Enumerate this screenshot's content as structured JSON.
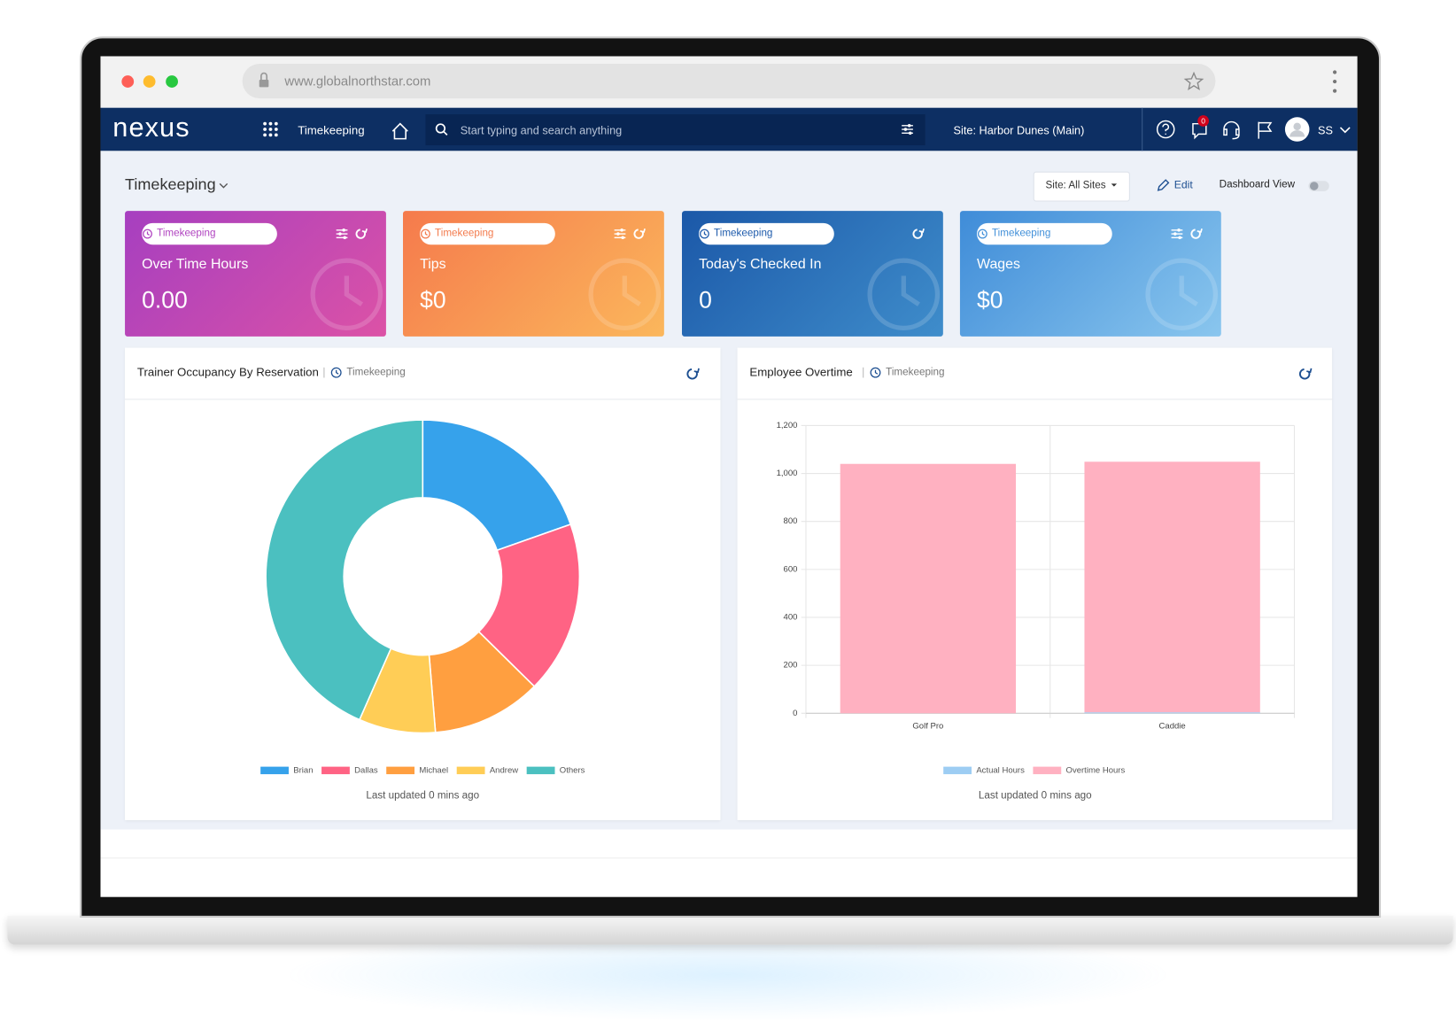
{
  "browser": {
    "url": "www.globalnorthstar.com"
  },
  "nav": {
    "logo": "nexus",
    "module": "Timekeeping",
    "search_placeholder": "Start typing and search anything",
    "site": "Site: Harbor Dunes (Main)",
    "notifications": "0",
    "user_initials": "SS"
  },
  "page": {
    "title": "Timekeeping",
    "site_filter": "Site: All Sites",
    "edit": "Edit",
    "dashboard_view": "Dashboard View"
  },
  "cards": [
    {
      "tag": "Timekeeping",
      "title": "Over Time Hours",
      "value": "0.00"
    },
    {
      "tag": "Timekeeping",
      "title": "Tips",
      "value": "$0"
    },
    {
      "tag": "Timekeeping",
      "title": "Today's Checked In",
      "value": "0"
    },
    {
      "tag": "Timekeeping",
      "title": "Wages",
      "value": "$0"
    }
  ],
  "panels": [
    {
      "tag": "Timekeeping",
      "footer": "Last updated 0 mins ago"
    },
    {
      "tag": "Timekeeping",
      "footer": "Last updated 0 mins ago"
    }
  ],
  "chart_data": [
    {
      "type": "donut",
      "title": "Trainer Occupancy By Reservation",
      "categories": [
        "Brian",
        "Dallas",
        "Michael",
        "Andrew",
        "Others"
      ],
      "values": [
        19.6,
        17.8,
        11.3,
        7.9,
        43.4
      ],
      "colors": [
        "#36a2eb",
        "#ff6384",
        "#ff9f40",
        "#ffcd56",
        "#4bc0c0"
      ]
    },
    {
      "type": "bar",
      "title": "Employee Overtime",
      "stacked": true,
      "grid": true,
      "categories": [
        "Golf Pro",
        "Caddie"
      ],
      "series": [
        {
          "name": "Actual Hours",
          "color": "#9dcdf3",
          "values": [
            0,
            4
          ]
        },
        {
          "name": "Overtime Hours",
          "color": "#ffb1c1",
          "values": [
            1040,
            1045
          ]
        }
      ],
      "ylim": [
        0,
        1200
      ],
      "yticks": [
        0,
        200,
        400,
        600,
        800,
        {
          "value": 1000,
          "label": "1,000"
        },
        {
          "value": 1200,
          "label": "1,200"
        }
      ]
    }
  ]
}
